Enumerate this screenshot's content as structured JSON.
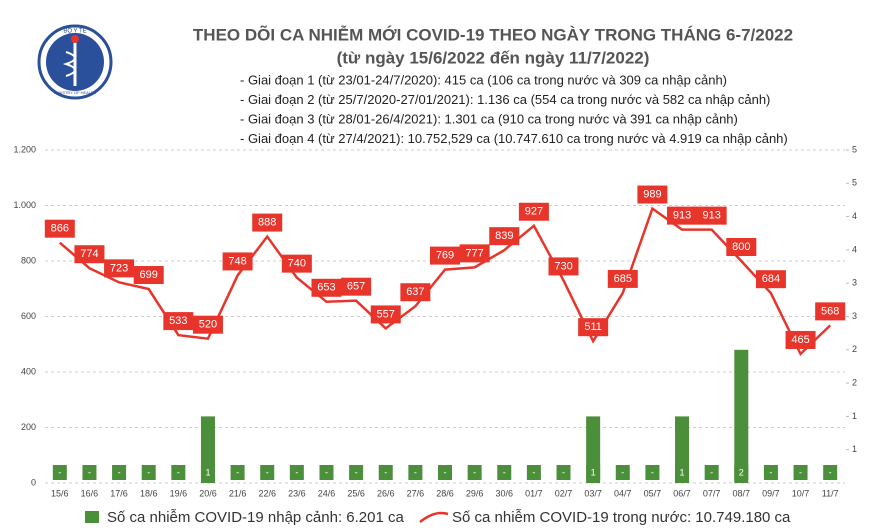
{
  "chart_data": {
    "type": "combo",
    "title": "THEO DÕI CA NHIỄM MỚI COVID-19 THEO NGÀY TRONG THÁNG 6-7/2022",
    "subtitle": "(từ ngày 15/6/2022 đến ngày 11/7/2022)",
    "logo_top": "BỘ Y TẾ",
    "logo_bottom": "MINISTRY OF HEALTH",
    "notes": [
      "- Giai đoạn 1 (từ 23/01-24/7/2020): 415 ca (106 ca trong nước và 309 ca nhập cảnh)",
      "- Giai đoạn 2 (từ 25/7/2020-27/01/2021): 1.136 ca (554 ca trong nước và 582 ca nhập cảnh)",
      "- Giai đoạn 3 (từ 28/01-26/4/2021): 1.301 ca (910 ca trong nước và 391 ca nhập cảnh)",
      "- Giai đoạn 4 (từ 27/4/2021): 10.752,529 ca (10.747.610 ca trong nước và 4.919 ca nhập cảnh)"
    ],
    "categories": [
      "15/6",
      "16/6",
      "17/6",
      "18/6",
      "19/6",
      "20/6",
      "21/6",
      "22/6",
      "23/6",
      "24/6",
      "25/6",
      "26/6",
      "27/6",
      "28/6",
      "29/6",
      "30/6",
      "01/7",
      "02/7",
      "03/7",
      "04/7",
      "05/7",
      "06/7",
      "07/7",
      "08/7",
      "09/7",
      "10/7",
      "11/7"
    ],
    "series": [
      {
        "name": "Số ca nhiễm COVID-19 nhập cảnh: 6.201 ca",
        "type": "bar",
        "axis": "y2",
        "color": "#4b8f3a",
        "values": [
          0,
          0,
          0,
          0,
          0,
          1,
          0,
          0,
          0,
          0,
          0,
          0,
          0,
          0,
          0,
          0,
          0,
          0,
          1,
          0,
          0,
          1,
          0,
          2,
          0,
          0,
          0
        ],
        "value_labels": [
          "-",
          "-",
          "-",
          "-",
          "-",
          "1",
          "-",
          "-",
          "-",
          "-",
          "-",
          "-",
          "-",
          "-",
          "-",
          "-",
          "-",
          "-",
          "1",
          "-",
          "-",
          "1",
          "-",
          "2",
          "-",
          "-",
          "-"
        ]
      },
      {
        "name": "Số ca nhiễm COVID-19 trong nước: 10.749.180 ca",
        "type": "line",
        "color": "#e8352b",
        "values": [
          866,
          774,
          723,
          699,
          533,
          520,
          748,
          888,
          740,
          653,
          657,
          557,
          637,
          769,
          777,
          839,
          927,
          730,
          511,
          685,
          989,
          913,
          913,
          800,
          684,
          465,
          568
        ]
      }
    ],
    "ylim": [
      0,
      1200
    ],
    "yticks": [
      0,
      200,
      400,
      600,
      800,
      {
        "value": 1000,
        "label": "1.000"
      },
      {
        "value": 1200,
        "label": "1.200"
      }
    ],
    "y2lim": [
      0,
      5
    ],
    "y2ticks": [
      {
        "value": 0.5,
        "label": "1"
      },
      1,
      {
        "value": 1.5,
        "label": "2"
      },
      2,
      {
        "value": 2.5,
        "label": "3"
      },
      3,
      {
        "value": 3.5,
        "label": "4"
      },
      4,
      {
        "value": 4.5,
        "label": "5"
      },
      5
    ],
    "grid": true
  }
}
